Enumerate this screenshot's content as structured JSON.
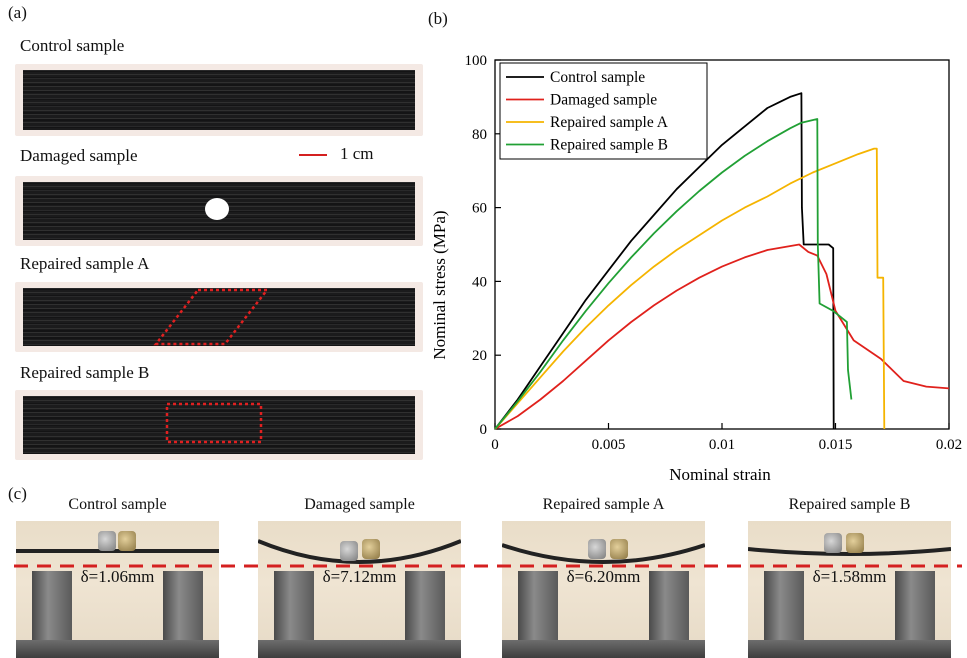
{
  "panel_labels": {
    "a": "(a)",
    "b": "(b)",
    "c": "(c)"
  },
  "samples": {
    "control": "Control sample",
    "damaged": "Damaged sample",
    "repaired_a": "Repaired sample A",
    "repaired_b": "Repaired sample B"
  },
  "scale_bar": "1 cm",
  "colors": {
    "control": "#000000",
    "damaged": "#e0211c",
    "repaired_a": "#f5b400",
    "repaired_b": "#21a035",
    "reference_line": "#d42020"
  },
  "chart_data": {
    "type": "line",
    "xlabel": "Nominal strain",
    "ylabel": "Nominal stress (MPa)",
    "xlim": [
      0,
      0.02
    ],
    "ylim": [
      0,
      100
    ],
    "xticks": [
      "0",
      "0.005",
      "0.01",
      "0.015",
      "0.02"
    ],
    "yticks": [
      "0",
      "20",
      "40",
      "60",
      "80",
      "100"
    ],
    "legend_position": "top-left",
    "series": [
      {
        "name": "Control sample",
        "color": "#000000",
        "points": [
          [
            0,
            0
          ],
          [
            0.001,
            8
          ],
          [
            0.002,
            17
          ],
          [
            0.003,
            26
          ],
          [
            0.004,
            35
          ],
          [
            0.005,
            43
          ],
          [
            0.006,
            51
          ],
          [
            0.007,
            58
          ],
          [
            0.008,
            65
          ],
          [
            0.009,
            71
          ],
          [
            0.01,
            77
          ],
          [
            0.011,
            82
          ],
          [
            0.012,
            87
          ],
          [
            0.0125,
            88.5
          ],
          [
            0.013,
            90
          ],
          [
            0.0135,
            91
          ],
          [
            0.01352,
            60
          ],
          [
            0.0136,
            50
          ],
          [
            0.0142,
            50
          ],
          [
            0.0147,
            50
          ],
          [
            0.0149,
            49
          ],
          [
            0.01492,
            0
          ]
        ]
      },
      {
        "name": "Damaged sample",
        "color": "#e0211c",
        "points": [
          [
            0,
            0
          ],
          [
            0.001,
            3.5
          ],
          [
            0.002,
            8
          ],
          [
            0.003,
            13
          ],
          [
            0.004,
            18.5
          ],
          [
            0.005,
            24
          ],
          [
            0.006,
            29
          ],
          [
            0.007,
            33.5
          ],
          [
            0.008,
            37.5
          ],
          [
            0.009,
            41
          ],
          [
            0.01,
            44
          ],
          [
            0.011,
            46.5
          ],
          [
            0.012,
            48.5
          ],
          [
            0.0134,
            50
          ],
          [
            0.0138,
            48
          ],
          [
            0.0142,
            47
          ],
          [
            0.0146,
            42
          ],
          [
            0.015,
            32
          ],
          [
            0.0158,
            24
          ],
          [
            0.017,
            19
          ],
          [
            0.0175,
            16
          ],
          [
            0.018,
            13
          ],
          [
            0.019,
            11.5
          ],
          [
            0.02,
            11
          ]
        ]
      },
      {
        "name": "Repaired sample A",
        "color": "#f5b400",
        "points": [
          [
            0,
            0
          ],
          [
            0.001,
            7
          ],
          [
            0.002,
            14
          ],
          [
            0.003,
            21
          ],
          [
            0.004,
            27.5
          ],
          [
            0.005,
            33.5
          ],
          [
            0.006,
            39
          ],
          [
            0.007,
            44
          ],
          [
            0.008,
            48.5
          ],
          [
            0.009,
            52.5
          ],
          [
            0.01,
            56.5
          ],
          [
            0.011,
            60
          ],
          [
            0.012,
            63
          ],
          [
            0.013,
            66.5
          ],
          [
            0.014,
            69.5
          ],
          [
            0.015,
            72
          ],
          [
            0.016,
            74.5
          ],
          [
            0.0167,
            76
          ],
          [
            0.01682,
            76
          ],
          [
            0.01685,
            41
          ],
          [
            0.0171,
            41
          ],
          [
            0.01715,
            0
          ]
        ]
      },
      {
        "name": "Repaired sample B",
        "color": "#21a035",
        "points": [
          [
            0,
            0
          ],
          [
            0.001,
            7.5
          ],
          [
            0.002,
            15.5
          ],
          [
            0.003,
            24
          ],
          [
            0.004,
            32
          ],
          [
            0.005,
            39.5
          ],
          [
            0.006,
            46.5
          ],
          [
            0.007,
            53
          ],
          [
            0.008,
            59
          ],
          [
            0.009,
            64.5
          ],
          [
            0.01,
            69.5
          ],
          [
            0.011,
            74
          ],
          [
            0.012,
            78
          ],
          [
            0.013,
            81.5
          ],
          [
            0.0135,
            83
          ],
          [
            0.0142,
            84
          ],
          [
            0.01422,
            50
          ],
          [
            0.0143,
            34
          ],
          [
            0.0149,
            32
          ],
          [
            0.0155,
            29
          ],
          [
            0.01555,
            16
          ],
          [
            0.0157,
            8
          ]
        ]
      }
    ]
  },
  "deflection": {
    "control": "δ=1.06mm",
    "damaged": "δ=7.12mm",
    "repaired_a": "δ=6.20mm",
    "repaired_b": "δ=1.58mm"
  }
}
